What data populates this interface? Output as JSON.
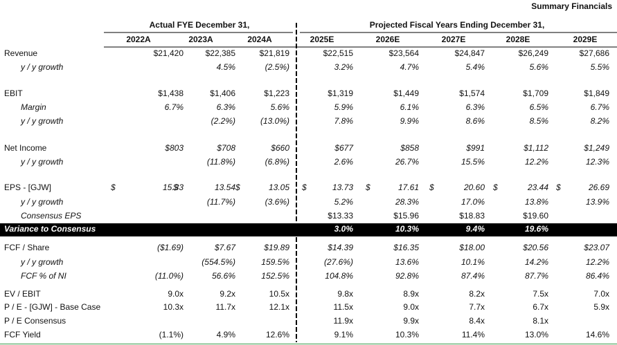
{
  "header": {
    "title": "Summary Financials"
  },
  "table": {
    "groups": [
      "Actual FYE December 31,",
      "Projected Fiscal Years Ending December 31,"
    ],
    "columns": [
      "2022A",
      "2023A",
      "2024A",
      "2025E",
      "2026E",
      "2027E",
      "2028E",
      "2029E"
    ],
    "rows": [
      {
        "label": "Revenue",
        "cells": [
          "$21,420",
          "$22,385",
          "$21,819",
          "$22,515",
          "$23,564",
          "$24,847",
          "$26,249",
          "$27,686"
        ]
      },
      {
        "label": "y / y growth",
        "cells": [
          null,
          "4.5%",
          "(2.5%)",
          "3.2%",
          "4.7%",
          "5.4%",
          "5.6%",
          "5.5%"
        ]
      },
      {
        "label": "EBIT",
        "cells": [
          "$1,438",
          "$1,406",
          "$1,223",
          "$1,319",
          "$1,449",
          "$1,574",
          "$1,709",
          "$1,849"
        ]
      },
      {
        "label": "Margin",
        "cells": [
          "6.7%",
          "6.3%",
          "5.6%",
          "5.9%",
          "6.1%",
          "6.3%",
          "6.5%",
          "6.7%"
        ]
      },
      {
        "label": "y / y growth",
        "cells": [
          null,
          "(2.2%)",
          "(13.0%)",
          "7.8%",
          "9.9%",
          "8.6%",
          "8.5%",
          "8.2%"
        ]
      },
      {
        "label": "Net Income",
        "cells": [
          "$803",
          "$708",
          "$660",
          "$677",
          "$858",
          "$991",
          "$1,112",
          "$1,249"
        ]
      },
      {
        "label": "y / y growth",
        "cells": [
          null,
          "(11.8%)",
          "(6.8%)",
          "2.6%",
          "26.7%",
          "15.5%",
          "12.2%",
          "12.3%"
        ]
      },
      {
        "label": "EPS - [GJW]",
        "cells": [
          {
            "symbol": "$",
            "value": "15.33"
          },
          {
            "symbol": "$",
            "value": "13.54"
          },
          {
            "symbol": "$",
            "value": "13.05"
          },
          {
            "symbol": "$",
            "value": "13.73"
          },
          {
            "symbol": "$",
            "value": "17.61"
          },
          {
            "symbol": "$",
            "value": "20.60"
          },
          {
            "symbol": "$",
            "value": "23.44"
          },
          {
            "symbol": "$",
            "value": "26.69"
          }
        ]
      },
      {
        "label": "y / y growth",
        "cells": [
          null,
          "(11.7%)",
          "(3.6%)",
          "5.2%",
          "28.3%",
          "17.0%",
          "13.8%",
          "13.9%"
        ]
      },
      {
        "label": "Consensus EPS",
        "cells": [
          null,
          null,
          null,
          "$13.33",
          "$15.96",
          "$18.83",
          "$19.60",
          null
        ]
      },
      {
        "label": "Variance to Consensus",
        "cells": [
          null,
          null,
          null,
          "3.0%",
          "10.3%",
          "9.4%",
          "19.6%",
          null
        ]
      },
      {
        "label": "FCF / Share",
        "cells": [
          "($1.69)",
          "$7.67",
          "$19.89",
          "$14.39",
          "$16.35",
          "$18.00",
          "$20.56",
          "$23.07"
        ]
      },
      {
        "label": "y / y growth",
        "cells": [
          null,
          "(554.5%)",
          "159.5%",
          "(27.6%)",
          "13.6%",
          "10.1%",
          "14.2%",
          "12.2%"
        ]
      },
      {
        "label": "FCF % of NI",
        "cells": [
          "(11.0%)",
          "56.6%",
          "152.5%",
          "104.8%",
          "92.8%",
          "87.4%",
          "87.7%",
          "86.4%"
        ]
      },
      {
        "label": "EV / EBIT",
        "cells": [
          "9.0x",
          "9.2x",
          "10.5x",
          "9.8x",
          "8.9x",
          "8.2x",
          "7.5x",
          "7.0x"
        ]
      },
      {
        "label": "P / E - [GJW] - Base Case",
        "cells": [
          "10.3x",
          "11.7x",
          "12.1x",
          "11.5x",
          "9.0x",
          "7.7x",
          "6.7x",
          "5.9x"
        ]
      },
      {
        "label": "P / E Consensus",
        "cells": [
          null,
          null,
          null,
          "11.9x",
          "9.9x",
          "8.4x",
          "8.1x",
          null
        ]
      },
      {
        "label": "FCF Yield",
        "cells": [
          "(1.1%)",
          "4.9%",
          "12.6%",
          "9.1%",
          "10.3%",
          "11.4%",
          "13.0%",
          "14.6%"
        ]
      }
    ]
  }
}
